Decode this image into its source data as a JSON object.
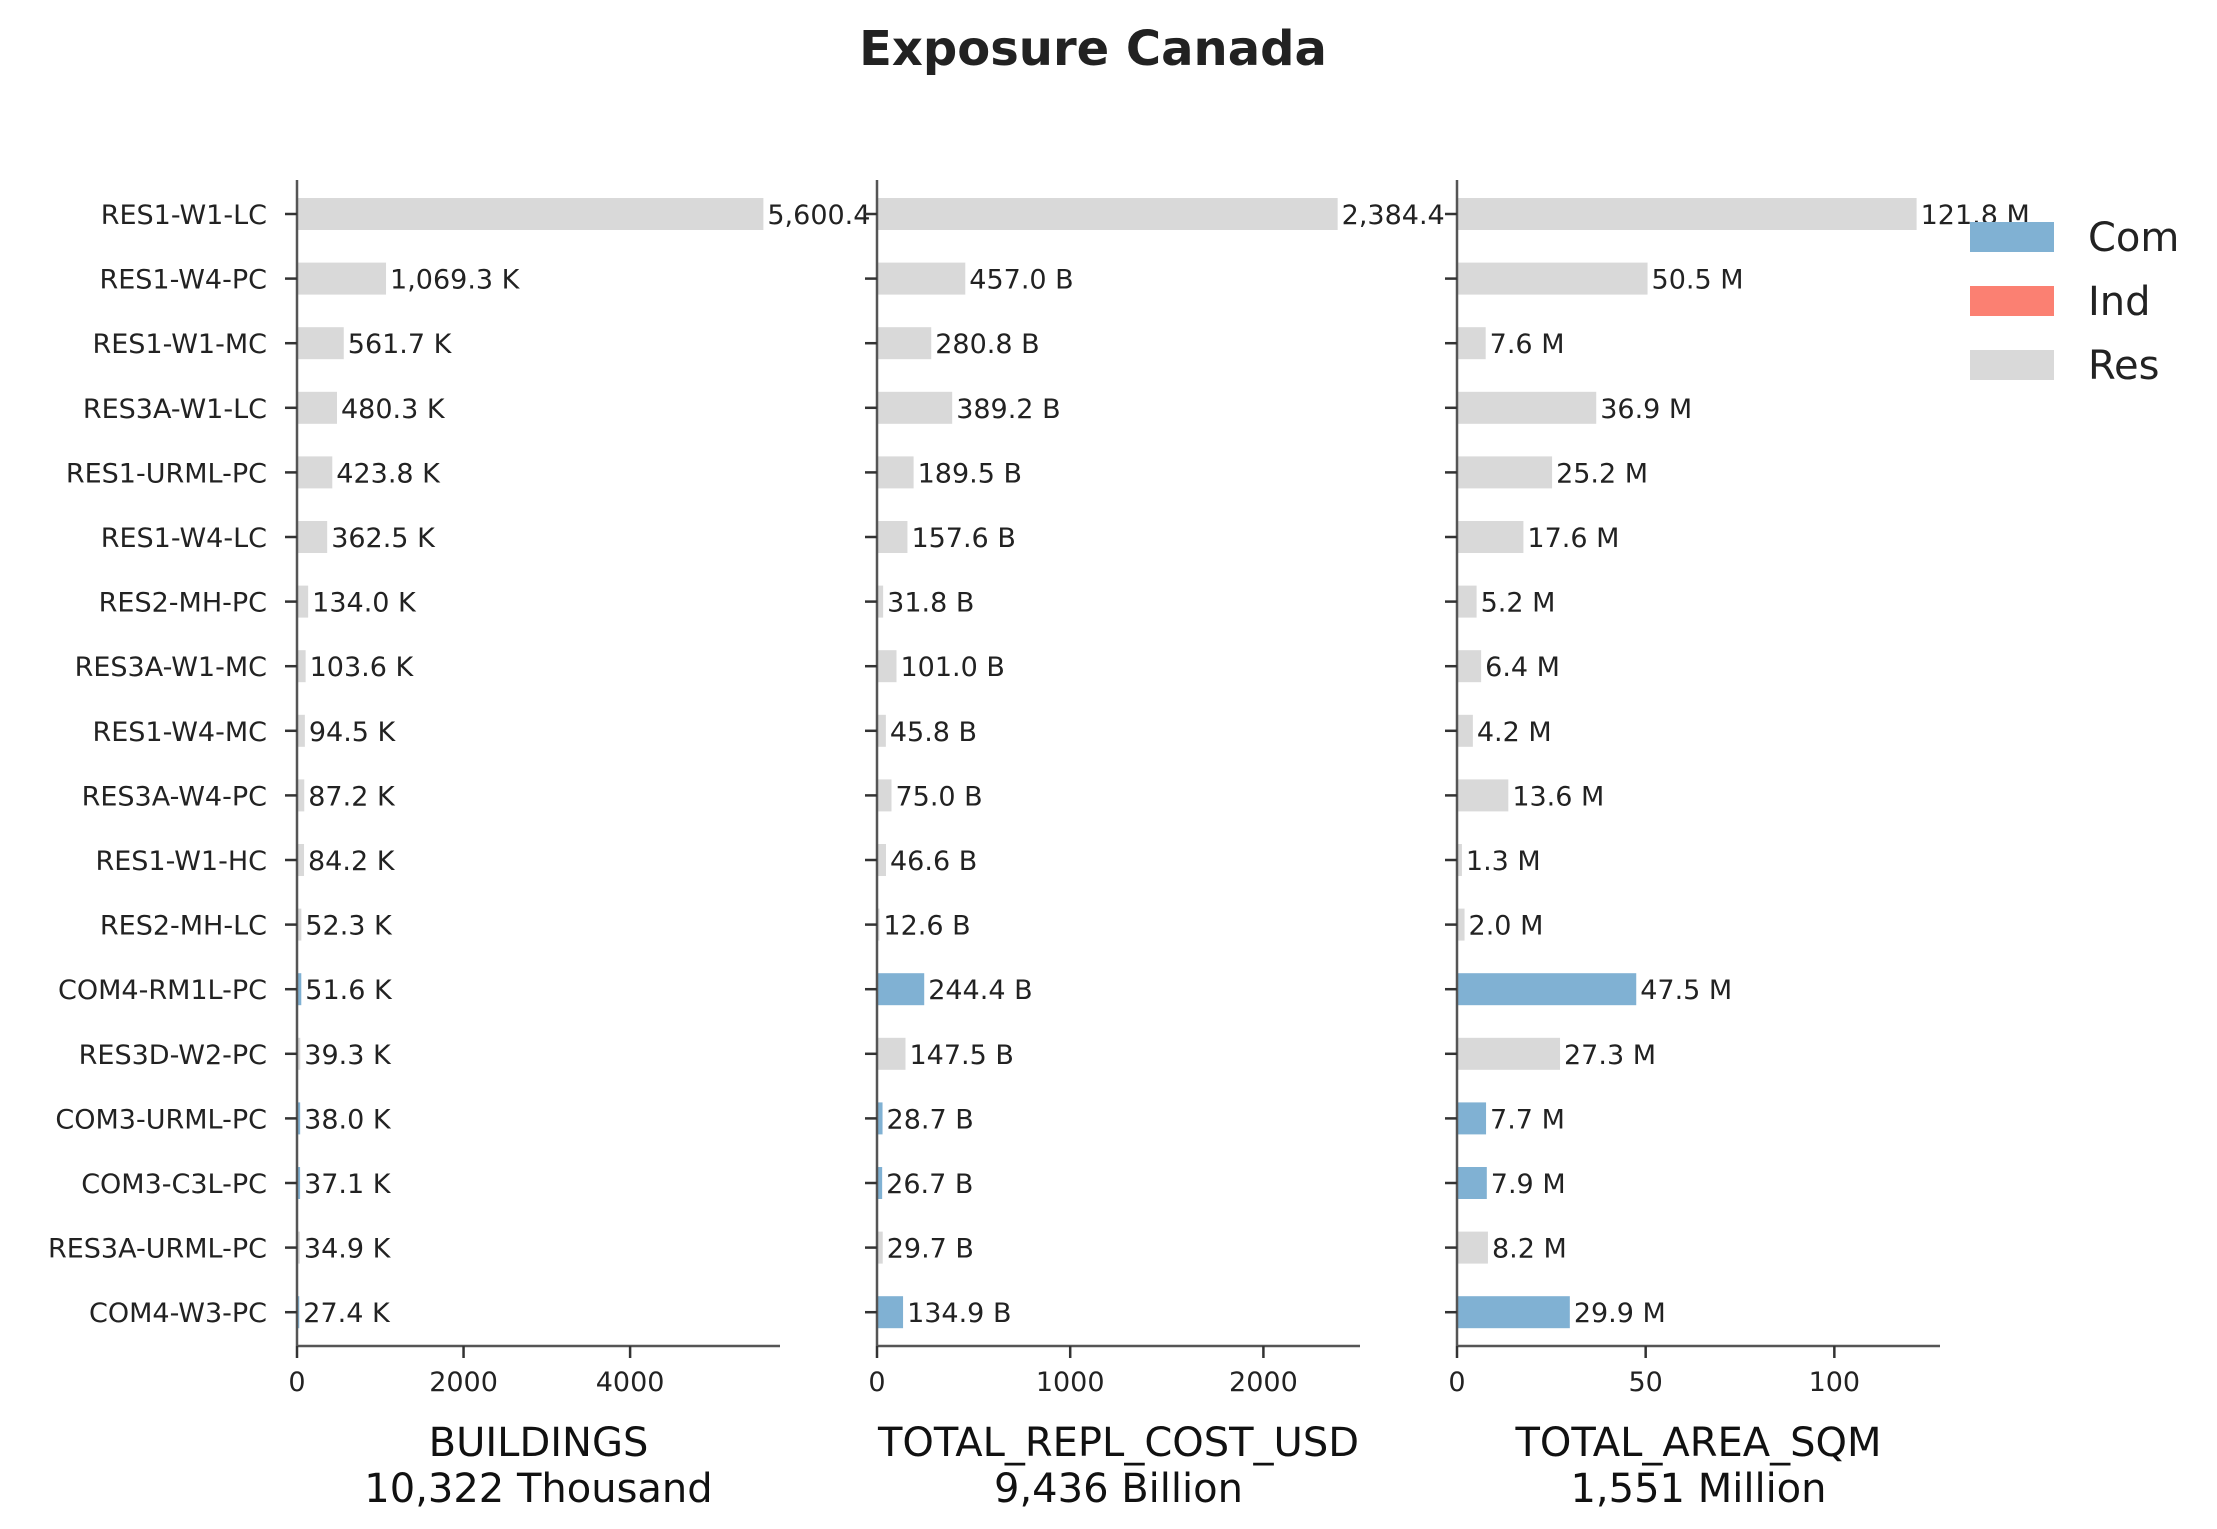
{
  "title": "Exposure Canada",
  "colors": {
    "Com": "#80b1d3",
    "Ind": "#fb8072",
    "Res": "#d9d9d9"
  },
  "legend": [
    {
      "key": "Com",
      "label": "Com"
    },
    {
      "key": "Ind",
      "label": "Ind"
    },
    {
      "key": "Res",
      "label": "Res"
    }
  ],
  "chart_data": {
    "type": "bar",
    "orientation": "horizontal",
    "title": "Exposure Canada",
    "legend_position": "top-right",
    "categories": [
      "RES1-W1-LC",
      "RES1-W4-PC",
      "RES1-W1-MC",
      "RES3A-W1-LC",
      "RES1-URML-PC",
      "RES1-W4-LC",
      "RES2-MH-PC",
      "RES3A-W1-MC",
      "RES1-W4-MC",
      "RES3A-W4-PC",
      "RES1-W1-HC",
      "RES2-MH-LC",
      "COM4-RM1L-PC",
      "RES3D-W2-PC",
      "COM3-URML-PC",
      "COM3-C3L-PC",
      "RES3A-URML-PC",
      "COM4-W3-PC"
    ],
    "occupancy": [
      "Res",
      "Res",
      "Res",
      "Res",
      "Res",
      "Res",
      "Res",
      "Res",
      "Res",
      "Res",
      "Res",
      "Res",
      "Com",
      "Res",
      "Com",
      "Com",
      "Res",
      "Com"
    ],
    "panels": [
      {
        "xlabel": "BUILDINGS",
        "xlabel_sub": "10,322 Thousand",
        "xlim": [
          0,
          5800
        ],
        "xticks": [
          0,
          2000,
          4000
        ],
        "xtick_labels": [
          "0",
          "2000",
          "4000"
        ],
        "values": [
          5600.4,
          1069.3,
          561.7,
          480.3,
          423.8,
          362.5,
          134.0,
          103.6,
          94.5,
          87.2,
          84.2,
          52.3,
          51.6,
          39.3,
          38.0,
          37.1,
          34.9,
          27.4
        ],
        "labels": [
          "5,600.4",
          "1,069.3 K",
          "561.7 K",
          "480.3 K",
          "423.8 K",
          "362.5 K",
          "134.0 K",
          "103.6 K",
          "94.5 K",
          "87.2 K",
          "84.2 K",
          "52.3 K",
          "51.6 K",
          "39.3 K",
          "38.0 K",
          "37.1 K",
          "34.9 K",
          "27.4 K"
        ]
      },
      {
        "xlabel": "TOTAL_REPL_COST_USD",
        "xlabel_sub": "9,436 Billion",
        "xlim": [
          0,
          2500
        ],
        "xticks": [
          0,
          1000,
          2000
        ],
        "xtick_labels": [
          "0",
          "1000",
          "2000"
        ],
        "values": [
          2384.4,
          457.0,
          280.8,
          389.2,
          189.5,
          157.6,
          31.8,
          101.0,
          45.8,
          75.0,
          46.6,
          12.6,
          244.4,
          147.5,
          28.7,
          26.7,
          29.7,
          134.9
        ],
        "labels": [
          "2,384.4",
          "457.0 B",
          "280.8 B",
          "389.2 B",
          "189.5 B",
          "157.6 B",
          "31.8 B",
          "101.0 B",
          "45.8 B",
          "75.0 B",
          "46.6 B",
          "12.6 B",
          "244.4 B",
          "147.5 B",
          "28.7 B",
          "26.7 B",
          "29.7 B",
          "134.9 B"
        ]
      },
      {
        "xlabel": "TOTAL_AREA_SQM",
        "xlabel_sub": "1,551 Million",
        "xlim": [
          0,
          128
        ],
        "xticks": [
          0,
          50,
          100
        ],
        "xtick_labels": [
          "0",
          "50",
          "100"
        ],
        "values": [
          121.8,
          50.5,
          7.6,
          36.9,
          25.2,
          17.6,
          5.2,
          6.4,
          4.2,
          13.6,
          1.3,
          2.0,
          47.5,
          27.3,
          7.7,
          7.9,
          8.2,
          29.9
        ],
        "labels": [
          "121.8 M",
          "50.5 M",
          "7.6 M",
          "36.9 M",
          "25.2 M",
          "17.6 M",
          "5.2 M",
          "6.4 M",
          "4.2 M",
          "13.6 M",
          "1.3 M",
          "2.0 M",
          "47.5 M",
          "27.3 M",
          "7.7 M",
          "7.9 M",
          "8.2 M",
          "29.9 M"
        ]
      }
    ]
  }
}
